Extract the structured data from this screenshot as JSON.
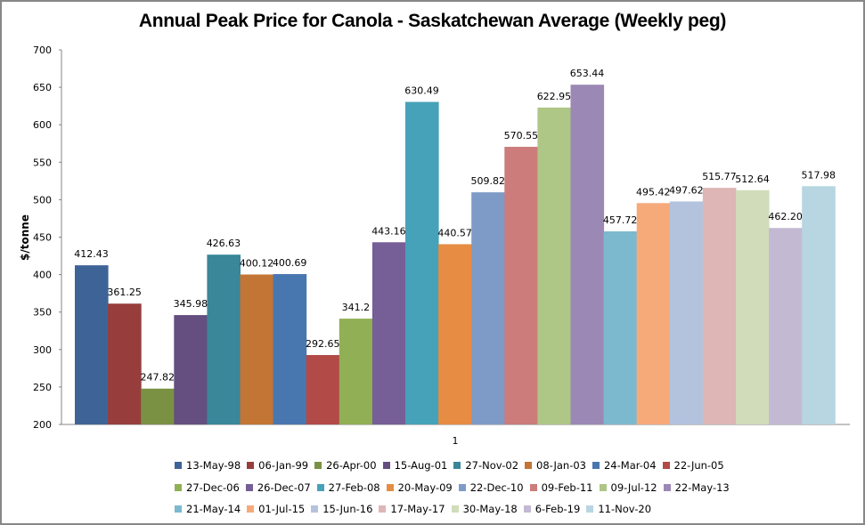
{
  "chart_data": {
    "type": "bar",
    "title": "Annual Peak Price for Canola - Saskatchewan Average (Weekly peg)",
    "xlabel": "",
    "ylabel": "$/tonne",
    "categories": [
      "1"
    ],
    "ylim": [
      200,
      700
    ],
    "yticks": [
      200,
      250,
      300,
      350,
      400,
      450,
      500,
      550,
      600,
      650,
      700
    ],
    "grid": false,
    "legend_position": "bottom",
    "series": [
      {
        "name": "13-May-98",
        "values": [
          412.43
        ],
        "label": "412.43",
        "color": "#3E6497"
      },
      {
        "name": "06-Jan-99",
        "values": [
          361.25
        ],
        "label": "361.25",
        "color": "#973E3D"
      },
      {
        "name": "26-Apr-00",
        "values": [
          247.82
        ],
        "label": "247.82",
        "color": "#7A9144"
      },
      {
        "name": "15-Aug-01",
        "values": [
          345.98
        ],
        "label": "345.98",
        "color": "#644F80"
      },
      {
        "name": "27-Nov-02",
        "values": [
          426.63
        ],
        "label": "426.63",
        "color": "#398799"
      },
      {
        "name": "08-Jan-03",
        "values": [
          400.12
        ],
        "label": "400.12",
        "color": "#C27535"
      },
      {
        "name": "24-Mar-04",
        "values": [
          400.69
        ],
        "label": "400.69",
        "color": "#4877B0"
      },
      {
        "name": "22-Jun-05",
        "values": [
          292.65
        ],
        "label": "292.65",
        "color": "#B24A48"
      },
      {
        "name": "27-Dec-06",
        "values": [
          341.2
        ],
        "label": "341.2",
        "color": "#91AF55"
      },
      {
        "name": "26-Dec-07",
        "values": [
          443.16
        ],
        "label": "443.16",
        "color": "#765E97"
      },
      {
        "name": "27-Feb-08",
        "values": [
          630.49
        ],
        "label": "630.49",
        "color": "#46A2B9"
      },
      {
        "name": "20-May-09",
        "values": [
          440.57
        ],
        "label": "440.57",
        "color": "#E68C43"
      },
      {
        "name": "22-Dec-10",
        "values": [
          509.82
        ],
        "label": "509.82",
        "color": "#7E9BC8"
      },
      {
        "name": "09-Feb-11",
        "values": [
          570.55
        ],
        "label": "570.55",
        "color": "#CB7C7B"
      },
      {
        "name": "09-Jul-12",
        "values": [
          622.95
        ],
        "label": "622.95",
        "color": "#AEC686"
      },
      {
        "name": "22-May-13",
        "values": [
          653.44
        ],
        "label": "653.44",
        "color": "#9C88B4"
      },
      {
        "name": "21-May-14",
        "values": [
          457.72
        ],
        "label": "457.72",
        "color": "#7CB9CF"
      },
      {
        "name": "01-Jul-15",
        "values": [
          495.42
        ],
        "label": "495.42",
        "color": "#F6AA7A"
      },
      {
        "name": "15-Jun-16",
        "values": [
          497.62
        ],
        "label": "497.62",
        "color": "#B4C3DD"
      },
      {
        "name": "17-May-17",
        "values": [
          515.77
        ],
        "label": "515.77",
        "color": "#DEB6B6"
      },
      {
        "name": "30-May-18",
        "values": [
          512.64
        ],
        "label": "512.64",
        "color": "#D0DCBA"
      },
      {
        "name": "6-Feb-19",
        "values": [
          462.2
        ],
        "label": "462.20",
        "color": "#C4B9D2"
      },
      {
        "name": "11-Nov-20",
        "values": [
          517.98
        ],
        "label": "517.98",
        "color": "#B7D6E2"
      }
    ],
    "legend_rows": [
      [
        0,
        1,
        2,
        3,
        4,
        5,
        6,
        7
      ],
      [
        8,
        9,
        10,
        11,
        12,
        13,
        14,
        15
      ],
      [
        16,
        17,
        18,
        19,
        20,
        21,
        22
      ]
    ]
  }
}
